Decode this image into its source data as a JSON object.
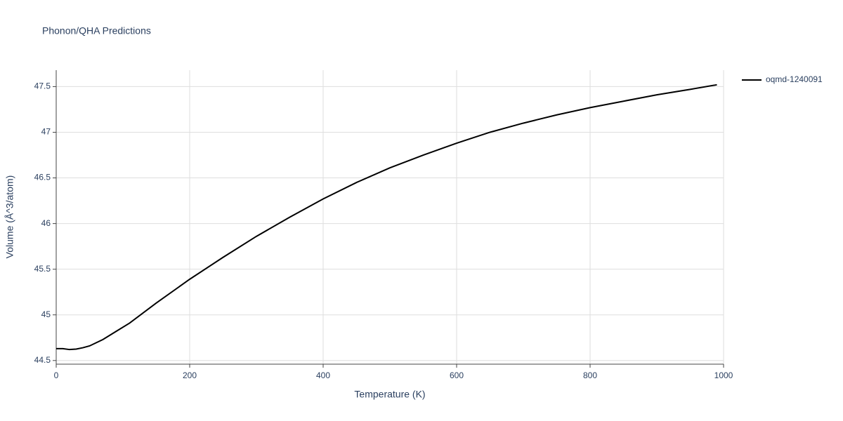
{
  "chart_data": {
    "type": "line",
    "title": "Phonon/QHA Predictions",
    "x_label": "Temperature (K)",
    "y_label": "Volume (Å^3/atom)",
    "x": [
      0,
      10,
      20,
      30,
      40,
      50,
      70,
      90,
      110,
      150,
      200,
      250,
      300,
      350,
      400,
      450,
      500,
      550,
      600,
      650,
      700,
      750,
      800,
      850,
      900,
      950,
      990
    ],
    "series": [
      {
        "name": "oqmd-1240091",
        "color": "#000000",
        "values": [
          44.63,
          44.63,
          44.62,
          44.625,
          44.64,
          44.66,
          44.73,
          44.82,
          44.91,
          45.13,
          45.39,
          45.63,
          45.86,
          46.07,
          46.27,
          46.45,
          46.61,
          46.75,
          46.88,
          47.0,
          47.1,
          47.19,
          47.27,
          47.34,
          47.41,
          47.47,
          47.52
        ]
      }
    ],
    "xlim": [
      0,
      1000
    ],
    "xticks": [
      0,
      200,
      400,
      600,
      800,
      1000
    ],
    "ylim": [
      44.46,
      47.68
    ],
    "yticks": [
      44.5,
      45,
      45.5,
      46,
      46.5,
      47,
      47.5
    ],
    "grid": true,
    "legend": "right"
  }
}
